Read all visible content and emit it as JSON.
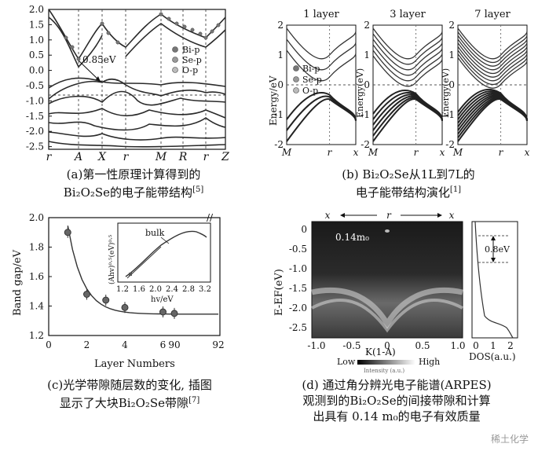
{
  "panel_a": {
    "y_ticks": [
      "2.0",
      "1.5",
      "1.0",
      "0.5",
      "0.0",
      "-0.5",
      "-1.0",
      "-1.5",
      "-2.0",
      "-2.5"
    ],
    "x_ticks": [
      "r",
      "A",
      "X",
      "r",
      "M",
      "R",
      "r",
      "Z"
    ],
    "legend": [
      "Bi-p",
      "Se-p",
      "O-p"
    ],
    "annotation": "0.85eV",
    "caption_line1": "(a)第一性原理计算得到的",
    "caption_line2": "Bi₂O₂Se的电子能带结构",
    "caption_ref": "[5]"
  },
  "panel_b": {
    "titles": [
      "1 layer",
      "3 layer",
      "7 layer"
    ],
    "ylabel": "Energy/eV",
    "ylabel2": "Energy(eV)",
    "y_ticks": [
      "2",
      "1",
      "0",
      "-1",
      "-2"
    ],
    "x_ticks": [
      "M",
      "r",
      "x"
    ],
    "legend": [
      "Bi-p",
      "Se-p",
      "O-p"
    ],
    "caption_line1": "(b) Bi₂O₂Se从1L到7L的",
    "caption_line2": "电子能带结构演化",
    "caption_ref": "[1]"
  },
  "panel_c": {
    "ylabel": "Band gap/eV",
    "xlabel": "Layer Numbers",
    "y_ticks": [
      "2.0",
      "1.8",
      "1.6",
      "1.4",
      "1.2"
    ],
    "x_ticks": [
      "0",
      "2",
      "4",
      "6",
      "90",
      "92"
    ],
    "inset_ylabel": "(Ahv)⁰·⁵(eV)⁰·⁵",
    "inset_xlabel": "hv/eV",
    "inset_x_ticks": [
      "1.2",
      "1.6",
      "2.0",
      "2.4",
      "2.8",
      "3.2"
    ],
    "inset_annotation": "bulk",
    "caption_line1": "(c)光学带隙随层数的变化, 插图",
    "caption_line2": "显示了大块Bi₂O₂Se带隙",
    "caption_ref": "[7]"
  },
  "chart_data": {
    "type": "scatter",
    "title": "",
    "xlabel": "Layer Numbers",
    "ylabel": "Band gap/eV",
    "ylim": [
      1.2,
      2.0
    ],
    "series": [
      {
        "x": [
          1,
          2,
          3,
          4,
          6,
          90
        ],
        "y": [
          1.9,
          1.48,
          1.44,
          1.39,
          1.36,
          1.35
        ]
      }
    ]
  },
  "panel_d": {
    "top_labels": [
      "x",
      "r",
      "x"
    ],
    "annotation": "0.14m₀",
    "dos_annotation": "0.8eV",
    "ylabel": "E-EF(eV)",
    "y_ticks": [
      "0",
      "-0.5",
      "-1.0",
      "-1.5",
      "-2.0",
      "-2.5"
    ],
    "x_ticks": [
      "-1.0",
      "-0.5",
      "0",
      "0.5",
      "1.0"
    ],
    "xlabel": "K(1-A)",
    "dos_x_ticks": [
      "0",
      "1",
      "2"
    ],
    "dos_xlabel": "DOS(a.u.)",
    "intensity_low": "Low",
    "intensity_high": "High",
    "intensity_label": "Intensity (a.u.)",
    "caption_line1": "(d) 通过角分辨光电子能谱(ARPES)",
    "caption_line2": "观测到的Bi₂O₂Se的间接带隙和计算",
    "caption_line3": "出具有 0.14 m₀的电子有效质量"
  },
  "watermark": "稀土化学"
}
